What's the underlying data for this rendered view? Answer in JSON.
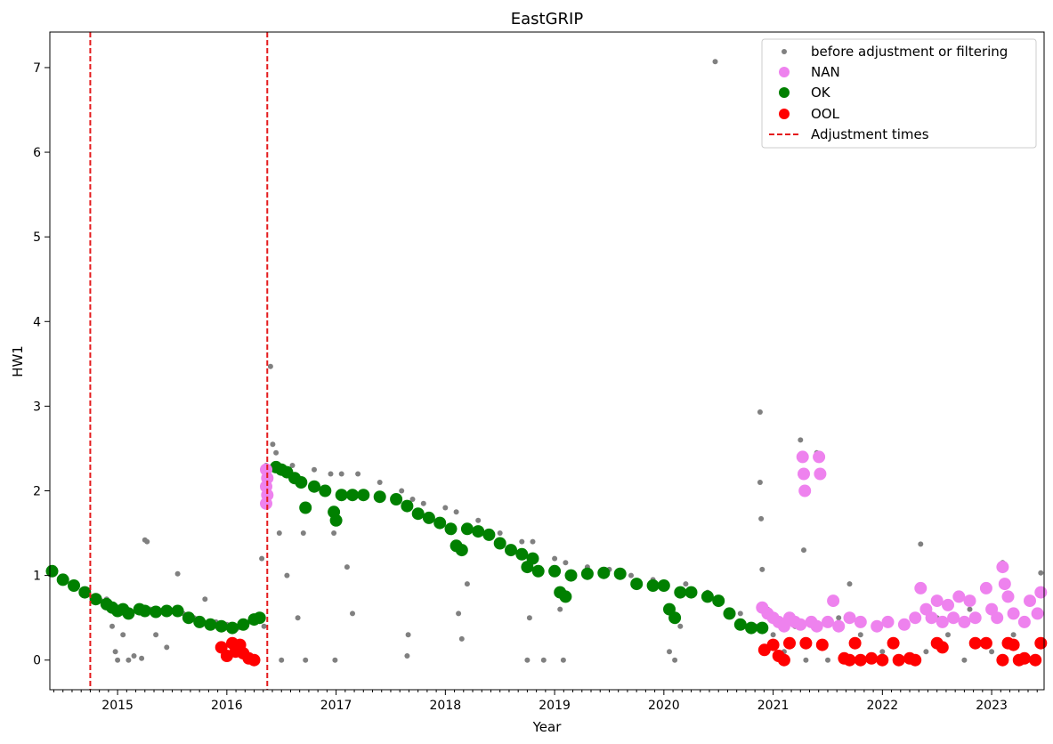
{
  "chart_data": {
    "type": "scatter",
    "title": "EastGRIP",
    "xlabel": "Year",
    "ylabel": "HW1",
    "xlim": [
      2014.38,
      2023.48
    ],
    "ylim": [
      -0.35,
      7.42
    ],
    "x_ticks": [
      2015,
      2016,
      2017,
      2018,
      2019,
      2020,
      2021,
      2022,
      2023
    ],
    "x_tick_labels": [
      "2015",
      "2016",
      "2017",
      "2018",
      "2019",
      "2020",
      "2021",
      "2022",
      "2023"
    ],
    "y_ticks": [
      0,
      1,
      2,
      3,
      4,
      5,
      6,
      7
    ],
    "y_tick_labels": [
      "0",
      "1",
      "2",
      "3",
      "4",
      "5",
      "6",
      "7"
    ],
    "legend": {
      "position": "top-right",
      "entries": [
        {
          "label": "before adjustment or filtering",
          "color": "#808080",
          "marker": "small-dot"
        },
        {
          "label": "NAN",
          "color": "#ee82ee",
          "marker": "dot"
        },
        {
          "label": "OK",
          "color": "#008000",
          "marker": "dot"
        },
        {
          "label": "OOL",
          "color": "#ff0000",
          "marker": "dot"
        },
        {
          "label": "Adjustment times",
          "color": "#e41a1c",
          "marker": "dashed-line"
        }
      ]
    },
    "adjustment_times": [
      2014.75,
      2016.37
    ],
    "series": [
      {
        "name": "before adjustment or filtering",
        "color": "#808080",
        "points": [
          [
            2014.4,
            1.08
          ],
          [
            2014.5,
            0.97
          ],
          [
            2014.6,
            0.9
          ],
          [
            2014.7,
            0.82
          ],
          [
            2014.8,
            0.74
          ],
          [
            2014.85,
            0.7
          ],
          [
            2014.9,
            0.72
          ],
          [
            2014.95,
            0.4
          ],
          [
            2014.98,
            0.1
          ],
          [
            2015.0,
            0.0
          ],
          [
            2015.05,
            0.3
          ],
          [
            2015.1,
            0.0
          ],
          [
            2015.15,
            0.05
          ],
          [
            2015.2,
            0.6
          ],
          [
            2015.22,
            0.02
          ],
          [
            2015.25,
            1.42
          ],
          [
            2015.27,
            1.4
          ],
          [
            2015.3,
            0.6
          ],
          [
            2015.35,
            0.3
          ],
          [
            2015.4,
            0.58
          ],
          [
            2015.45,
            0.15
          ],
          [
            2015.55,
            1.02
          ],
          [
            2015.6,
            0.55
          ],
          [
            2015.7,
            0.5
          ],
          [
            2015.8,
            0.72
          ],
          [
            2015.9,
            0.45
          ],
          [
            2016.0,
            0.42
          ],
          [
            2016.1,
            0.38
          ],
          [
            2016.2,
            0.45
          ],
          [
            2016.28,
            0.5
          ],
          [
            2016.32,
            1.2
          ],
          [
            2016.34,
            0.4
          ],
          [
            2016.36,
            2.3
          ],
          [
            2016.4,
            3.47
          ],
          [
            2016.42,
            2.55
          ],
          [
            2016.45,
            2.45
          ],
          [
            2016.48,
            1.5
          ],
          [
            2016.5,
            0.0
          ],
          [
            2016.55,
            1.0
          ],
          [
            2016.6,
            2.3
          ],
          [
            2016.65,
            0.5
          ],
          [
            2016.7,
            1.5
          ],
          [
            2016.72,
            0.0
          ],
          [
            2016.8,
            2.25
          ],
          [
            2016.95,
            2.2
          ],
          [
            2016.98,
            1.5
          ],
          [
            2016.99,
            0.0
          ],
          [
            2017.05,
            2.2
          ],
          [
            2017.1,
            1.1
          ],
          [
            2017.15,
            0.55
          ],
          [
            2017.2,
            2.2
          ],
          [
            2017.4,
            2.1
          ],
          [
            2017.6,
            2.0
          ],
          [
            2017.65,
            0.05
          ],
          [
            2017.66,
            0.3
          ],
          [
            2017.7,
            1.9
          ],
          [
            2017.8,
            1.85
          ],
          [
            2018.0,
            1.8
          ],
          [
            2018.1,
            1.75
          ],
          [
            2018.12,
            0.55
          ],
          [
            2018.15,
            0.25
          ],
          [
            2018.2,
            0.9
          ],
          [
            2018.3,
            1.65
          ],
          [
            2018.5,
            1.5
          ],
          [
            2018.7,
            1.4
          ],
          [
            2018.75,
            0.0
          ],
          [
            2018.77,
            0.5
          ],
          [
            2018.8,
            1.4
          ],
          [
            2018.9,
            0.0
          ],
          [
            2019.0,
            1.2
          ],
          [
            2019.05,
            0.6
          ],
          [
            2019.08,
            0.0
          ],
          [
            2019.1,
            1.15
          ],
          [
            2019.3,
            1.1
          ],
          [
            2019.5,
            1.07
          ],
          [
            2019.7,
            1.0
          ],
          [
            2019.9,
            0.95
          ],
          [
            2020.0,
            0.92
          ],
          [
            2020.05,
            0.1
          ],
          [
            2020.1,
            0.0
          ],
          [
            2020.15,
            0.4
          ],
          [
            2020.2,
            0.9
          ],
          [
            2020.4,
            0.8
          ],
          [
            2020.47,
            7.07
          ],
          [
            2020.5,
            0.72
          ],
          [
            2020.7,
            0.55
          ],
          [
            2020.85,
            0.4
          ],
          [
            2020.88,
            2.93
          ],
          [
            2020.88,
            2.1
          ],
          [
            2020.89,
            1.67
          ],
          [
            2020.9,
            1.07
          ],
          [
            2020.95,
            0.6
          ],
          [
            2021.0,
            0.3
          ],
          [
            2021.1,
            0.1
          ],
          [
            2021.2,
            0.4
          ],
          [
            2021.25,
            2.6
          ],
          [
            2021.28,
            1.3
          ],
          [
            2021.3,
            0.0
          ],
          [
            2021.4,
            2.45
          ],
          [
            2021.45,
            0.2
          ],
          [
            2021.5,
            0.0
          ],
          [
            2021.6,
            0.5
          ],
          [
            2021.7,
            0.9
          ],
          [
            2021.8,
            0.3
          ],
          [
            2021.9,
            0.0
          ],
          [
            2022.0,
            0.1
          ],
          [
            2022.2,
            0.45
          ],
          [
            2022.35,
            1.37
          ],
          [
            2022.4,
            0.1
          ],
          [
            2022.5,
            0.5
          ],
          [
            2022.6,
            0.3
          ],
          [
            2022.75,
            0.0
          ],
          [
            2022.8,
            0.6
          ],
          [
            2022.9,
            0.2
          ],
          [
            2023.0,
            0.1
          ],
          [
            2023.1,
            1.15
          ],
          [
            2023.2,
            0.3
          ],
          [
            2023.35,
            0.0
          ],
          [
            2023.45,
            1.03
          ]
        ]
      },
      {
        "name": "OK",
        "color": "#008000",
        "points": [
          [
            2014.4,
            1.05
          ],
          [
            2014.5,
            0.95
          ],
          [
            2014.6,
            0.88
          ],
          [
            2014.7,
            0.8
          ],
          [
            2014.8,
            0.72
          ],
          [
            2014.9,
            0.66
          ],
          [
            2014.95,
            0.62
          ],
          [
            2015.0,
            0.58
          ],
          [
            2015.05,
            0.6
          ],
          [
            2015.1,
            0.55
          ],
          [
            2015.2,
            0.6
          ],
          [
            2015.25,
            0.58
          ],
          [
            2015.35,
            0.57
          ],
          [
            2015.45,
            0.58
          ],
          [
            2015.55,
            0.58
          ],
          [
            2015.65,
            0.5
          ],
          [
            2015.75,
            0.45
          ],
          [
            2015.85,
            0.42
          ],
          [
            2015.95,
            0.4
          ],
          [
            2016.05,
            0.38
          ],
          [
            2016.15,
            0.42
          ],
          [
            2016.25,
            0.48
          ],
          [
            2016.3,
            0.5
          ],
          [
            2016.45,
            2.28
          ],
          [
            2016.5,
            2.25
          ],
          [
            2016.55,
            2.22
          ],
          [
            2016.62,
            2.15
          ],
          [
            2016.68,
            2.1
          ],
          [
            2016.72,
            1.8
          ],
          [
            2016.8,
            2.05
          ],
          [
            2016.9,
            2.0
          ],
          [
            2016.98,
            1.75
          ],
          [
            2017.0,
            1.65
          ],
          [
            2017.05,
            1.95
          ],
          [
            2017.15,
            1.95
          ],
          [
            2017.25,
            1.95
          ],
          [
            2017.4,
            1.93
          ],
          [
            2017.55,
            1.9
          ],
          [
            2017.65,
            1.82
          ],
          [
            2017.75,
            1.73
          ],
          [
            2017.85,
            1.68
          ],
          [
            2017.95,
            1.62
          ],
          [
            2018.05,
            1.55
          ],
          [
            2018.1,
            1.35
          ],
          [
            2018.15,
            1.3
          ],
          [
            2018.2,
            1.55
          ],
          [
            2018.3,
            1.52
          ],
          [
            2018.4,
            1.48
          ],
          [
            2018.5,
            1.38
          ],
          [
            2018.6,
            1.3
          ],
          [
            2018.7,
            1.25
          ],
          [
            2018.75,
            1.1
          ],
          [
            2018.8,
            1.2
          ],
          [
            2018.85,
            1.05
          ],
          [
            2019.0,
            1.05
          ],
          [
            2019.05,
            0.8
          ],
          [
            2019.1,
            0.75
          ],
          [
            2019.15,
            1.0
          ],
          [
            2019.3,
            1.02
          ],
          [
            2019.45,
            1.03
          ],
          [
            2019.6,
            1.02
          ],
          [
            2019.75,
            0.9
          ],
          [
            2019.9,
            0.88
          ],
          [
            2020.0,
            0.88
          ],
          [
            2020.05,
            0.6
          ],
          [
            2020.1,
            0.5
          ],
          [
            2020.15,
            0.8
          ],
          [
            2020.25,
            0.8
          ],
          [
            2020.4,
            0.75
          ],
          [
            2020.5,
            0.7
          ],
          [
            2020.6,
            0.55
          ],
          [
            2020.7,
            0.42
          ],
          [
            2020.8,
            0.38
          ],
          [
            2020.9,
            0.38
          ]
        ]
      },
      {
        "name": "NAN",
        "color": "#ee82ee",
        "points": [
          [
            2016.36,
            2.25
          ],
          [
            2016.36,
            2.05
          ],
          [
            2016.36,
            1.85
          ],
          [
            2016.37,
            2.15
          ],
          [
            2016.37,
            1.95
          ],
          [
            2020.9,
            0.62
          ],
          [
            2020.95,
            0.55
          ],
          [
            2021.0,
            0.5
          ],
          [
            2021.05,
            0.45
          ],
          [
            2021.1,
            0.4
          ],
          [
            2021.15,
            0.5
          ],
          [
            2021.2,
            0.45
          ],
          [
            2021.25,
            0.42
          ],
          [
            2021.27,
            2.4
          ],
          [
            2021.28,
            2.2
          ],
          [
            2021.29,
            2.0
          ],
          [
            2021.35,
            0.45
          ],
          [
            2021.4,
            0.4
          ],
          [
            2021.42,
            2.4
          ],
          [
            2021.43,
            2.2
          ],
          [
            2021.5,
            0.45
          ],
          [
            2021.55,
            0.7
          ],
          [
            2021.6,
            0.4
          ],
          [
            2021.7,
            0.5
          ],
          [
            2021.8,
            0.45
          ],
          [
            2021.95,
            0.4
          ],
          [
            2022.05,
            0.45
          ],
          [
            2022.2,
            0.42
          ],
          [
            2022.3,
            0.5
          ],
          [
            2022.35,
            0.85
          ],
          [
            2022.4,
            0.6
          ],
          [
            2022.45,
            0.5
          ],
          [
            2022.5,
            0.7
          ],
          [
            2022.55,
            0.45
          ],
          [
            2022.6,
            0.65
          ],
          [
            2022.65,
            0.5
          ],
          [
            2022.7,
            0.75
          ],
          [
            2022.75,
            0.45
          ],
          [
            2022.8,
            0.7
          ],
          [
            2022.85,
            0.5
          ],
          [
            2022.95,
            0.85
          ],
          [
            2023.0,
            0.6
          ],
          [
            2023.05,
            0.5
          ],
          [
            2023.1,
            1.1
          ],
          [
            2023.12,
            0.9
          ],
          [
            2023.15,
            0.75
          ],
          [
            2023.2,
            0.55
          ],
          [
            2023.3,
            0.45
          ],
          [
            2023.35,
            0.7
          ],
          [
            2023.42,
            0.55
          ],
          [
            2023.45,
            0.8
          ]
        ]
      },
      {
        "name": "OOL",
        "color": "#ff0000",
        "points": [
          [
            2015.95,
            0.15
          ],
          [
            2016.0,
            0.05
          ],
          [
            2016.05,
            0.2
          ],
          [
            2016.08,
            0.1
          ],
          [
            2016.12,
            0.18
          ],
          [
            2016.15,
            0.08
          ],
          [
            2016.2,
            0.02
          ],
          [
            2016.25,
            0.0
          ],
          [
            2020.92,
            0.12
          ],
          [
            2021.0,
            0.18
          ],
          [
            2021.05,
            0.05
          ],
          [
            2021.1,
            0.0
          ],
          [
            2021.15,
            0.2
          ],
          [
            2021.3,
            0.2
          ],
          [
            2021.45,
            0.18
          ],
          [
            2021.65,
            0.02
          ],
          [
            2021.7,
            0.0
          ],
          [
            2021.75,
            0.2
          ],
          [
            2021.8,
            0.0
          ],
          [
            2021.9,
            0.02
          ],
          [
            2022.0,
            0.0
          ],
          [
            2022.1,
            0.2
          ],
          [
            2022.15,
            0.0
          ],
          [
            2022.25,
            0.02
          ],
          [
            2022.3,
            0.0
          ],
          [
            2022.5,
            0.2
          ],
          [
            2022.55,
            0.15
          ],
          [
            2022.85,
            0.2
          ],
          [
            2022.95,
            0.2
          ],
          [
            2023.1,
            0.0
          ],
          [
            2023.15,
            0.2
          ],
          [
            2023.2,
            0.18
          ],
          [
            2023.25,
            0.0
          ],
          [
            2023.3,
            0.02
          ],
          [
            2023.4,
            0.0
          ],
          [
            2023.45,
            0.2
          ]
        ]
      }
    ]
  }
}
